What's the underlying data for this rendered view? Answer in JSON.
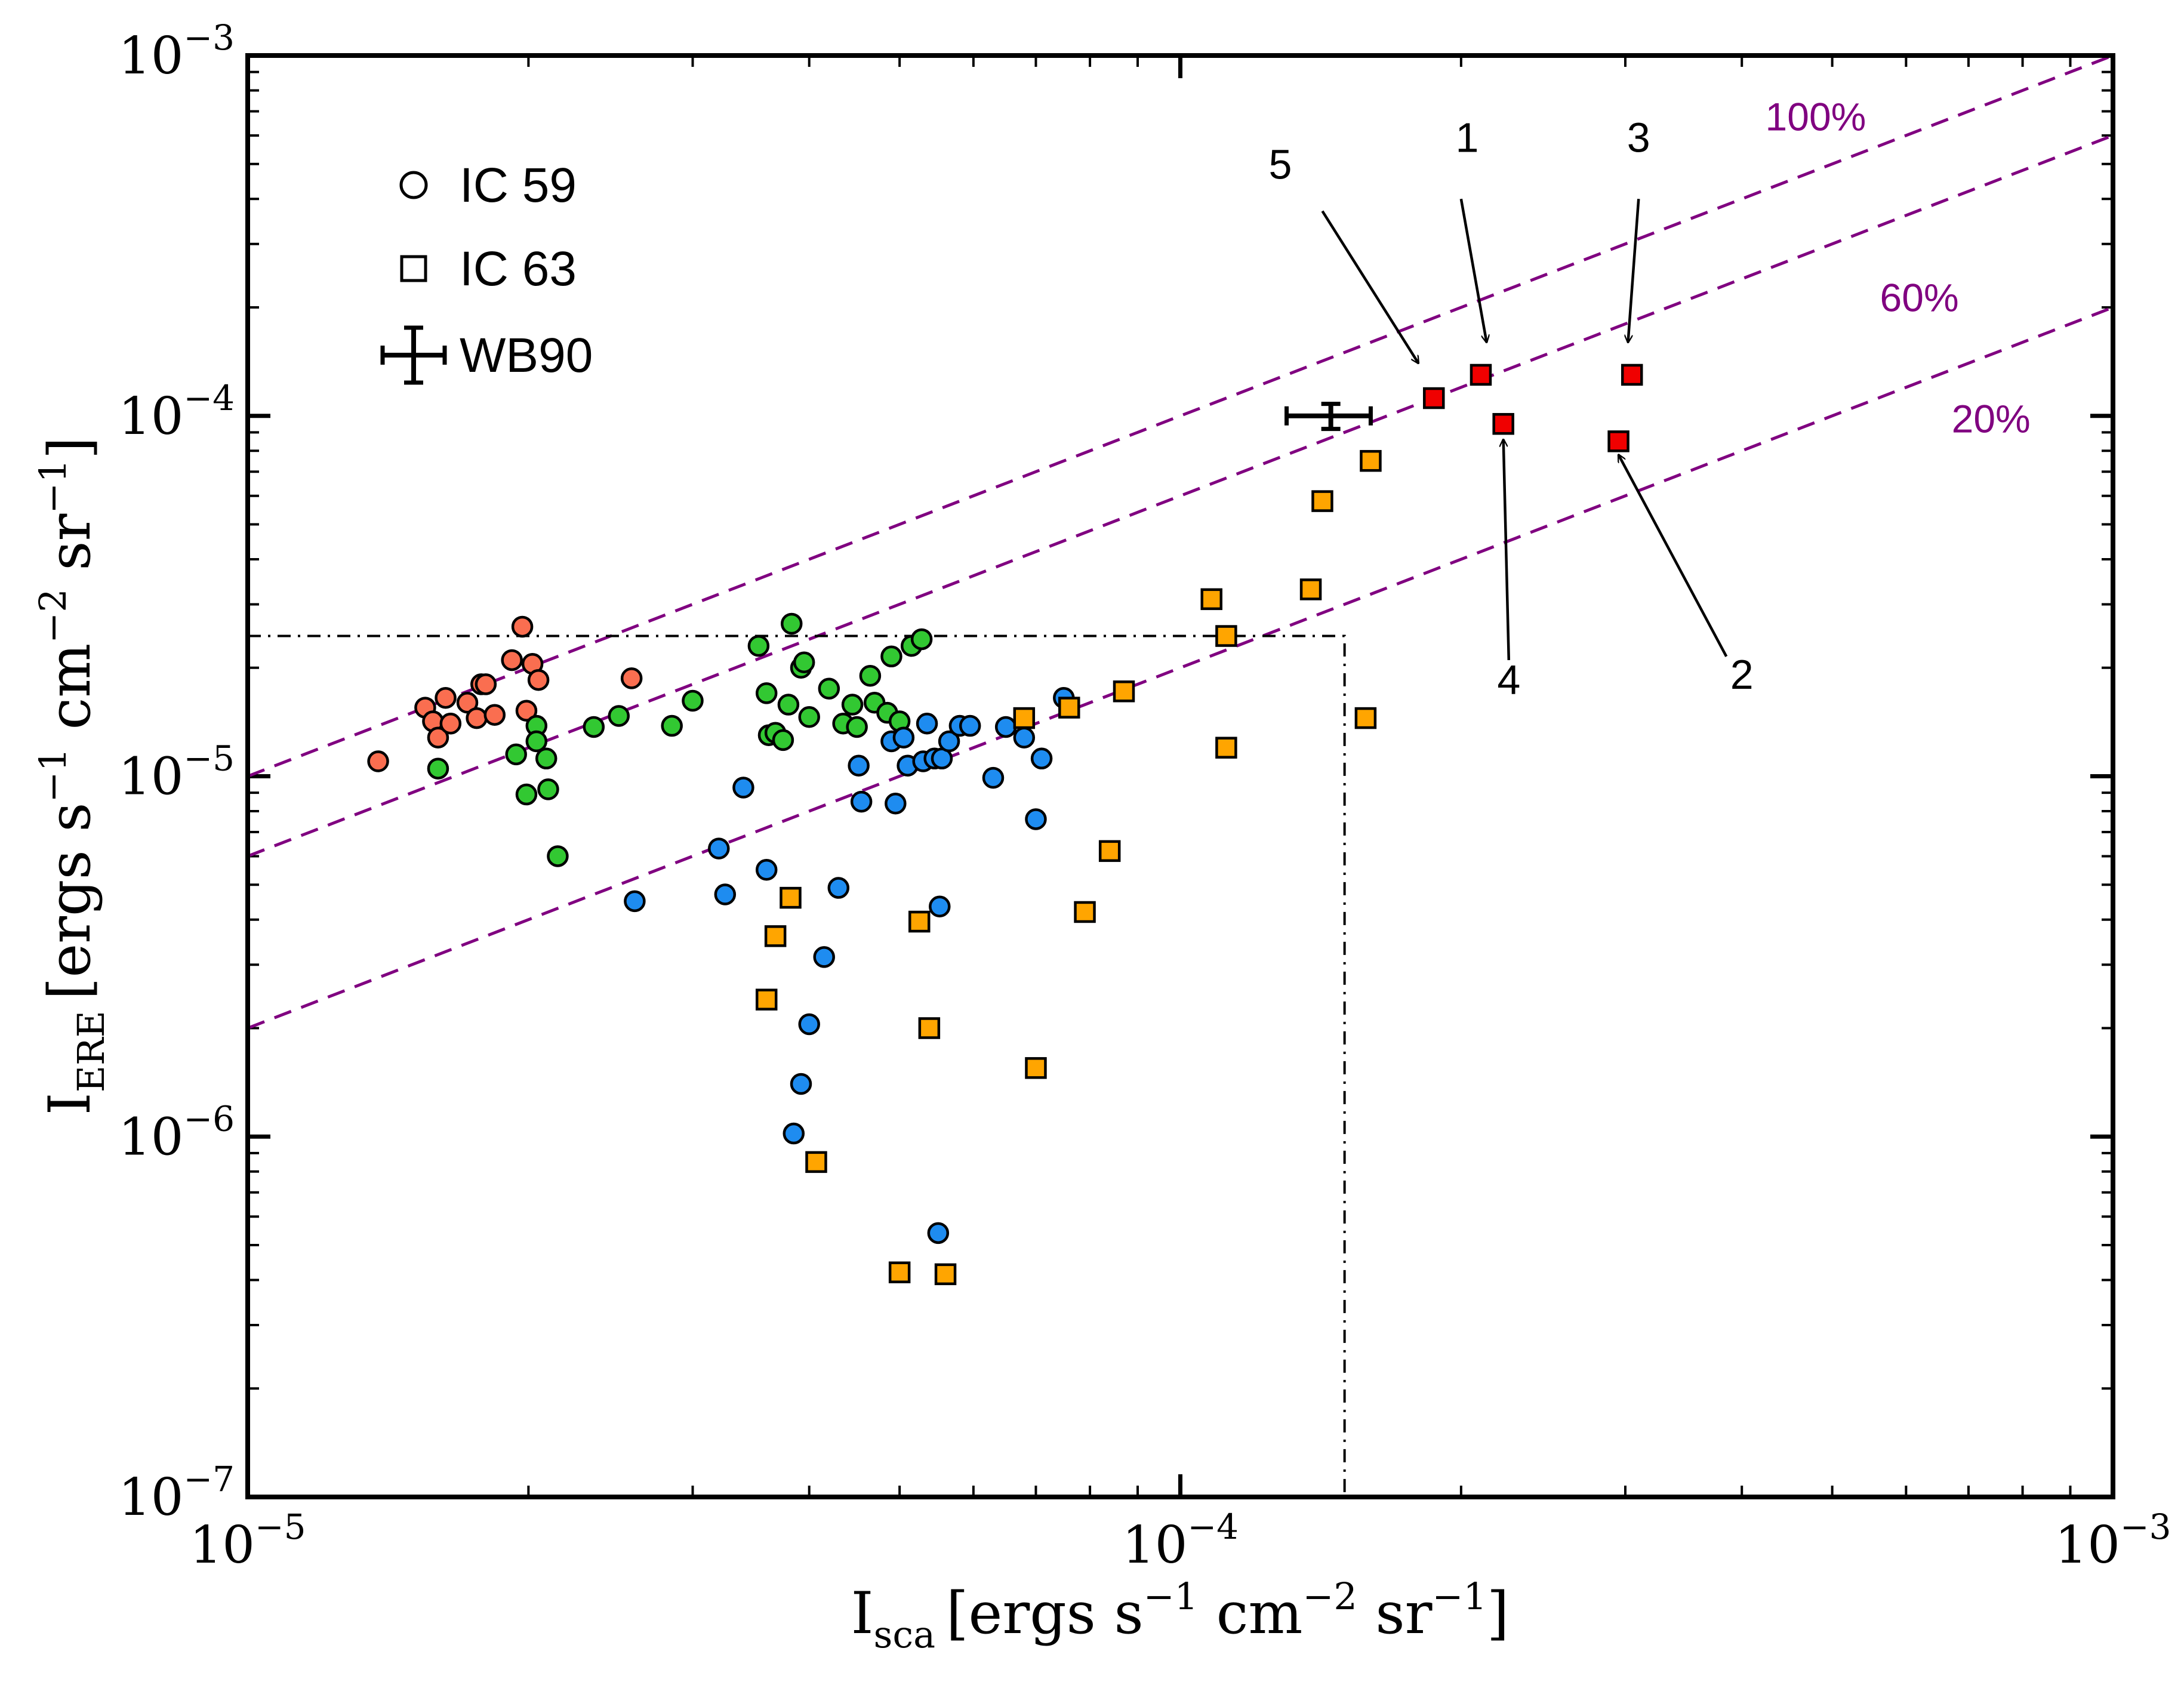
{
  "chart_data": {
    "type": "scatter",
    "x_scale": "log",
    "y_scale": "log",
    "xlim": [
      1e-05,
      0.001
    ],
    "ylim": [
      1e-07,
      0.001
    ],
    "xlabel": {
      "main": "I",
      "sub": "sca",
      "units": "[ergs s",
      "s1": "−1",
      "u2": " cm",
      "s2": "−2",
      "u3": " sr",
      "s3": "−1",
      "close": "]"
    },
    "ylabel": {
      "main": "I",
      "sub": "ERE",
      "units": "[ergs s",
      "s1": "−1",
      "u2": " cm",
      "s2": "−2",
      "u3": " sr",
      "s3": "−1",
      "close": "]"
    },
    "x_ticks": [
      {
        "value": 1e-05,
        "base": "10",
        "exp": "−5"
      },
      {
        "value": 0.0001,
        "base": "10",
        "exp": "−4"
      },
      {
        "value": 0.001,
        "base": "10",
        "exp": "−3"
      }
    ],
    "y_ticks": [
      {
        "value": 1e-07,
        "base": "10",
        "exp": "−7"
      },
      {
        "value": 1e-06,
        "base": "10",
        "exp": "−6"
      },
      {
        "value": 1e-05,
        "base": "10",
        "exp": "−5"
      },
      {
        "value": 0.0001,
        "base": "10",
        "exp": "−4"
      },
      {
        "value": 0.001,
        "base": "10",
        "exp": "−3"
      }
    ],
    "legend": {
      "position": "top-left",
      "entries": [
        {
          "marker": "circle",
          "label": "IC 59"
        },
        {
          "marker": "square",
          "label": "IC 63"
        },
        {
          "marker": "errorbar",
          "label": "WB90"
        }
      ]
    },
    "efficiency_lines": [
      {
        "label": "100%",
        "ratio": 1.0,
        "color": "#800080"
      },
      {
        "label": "60%",
        "ratio": 0.6,
        "color": "#800080"
      },
      {
        "label": "20%",
        "ratio": 0.2,
        "color": "#800080"
      }
    ],
    "threshold_box": {
      "x": 0.00015,
      "y": 2.45e-05
    },
    "wb90": {
      "x": 0.000145,
      "y": 0.0001,
      "xerr": [
        0.00013,
        0.00016
      ],
      "yerr": [
        9.2e-05,
        0.000108
      ]
    },
    "colors": {
      "ic59_red": "#fa6e50",
      "ic59_green": "#32c832",
      "ic59_blue": "#1e8cf0",
      "ic63_orange": "#ffa500",
      "ic63_red": "#f00000",
      "lines": "#800080"
    },
    "series": [
      {
        "marker": "circle",
        "color": "#fa6e50",
        "points": [
          [
            1.38e-05,
            1.1e-05
          ],
          [
            1.55e-05,
            1.55e-05
          ],
          [
            1.58e-05,
            1.42e-05
          ],
          [
            1.6e-05,
            1.28e-05
          ],
          [
            1.63e-05,
            1.65e-05
          ],
          [
            1.65e-05,
            1.4e-05
          ],
          [
            1.72e-05,
            1.6e-05
          ],
          [
            1.76e-05,
            1.45e-05
          ],
          [
            1.78e-05,
            1.8e-05
          ],
          [
            1.8e-05,
            1.8e-05
          ],
          [
            1.84e-05,
            1.48e-05
          ],
          [
            1.92e-05,
            2.1e-05
          ],
          [
            1.97e-05,
            2.6e-05
          ],
          [
            1.99e-05,
            1.52e-05
          ],
          [
            2.02e-05,
            2.05e-05
          ],
          [
            2.05e-05,
            1.85e-05
          ],
          [
            2.58e-05,
            1.87e-05
          ]
        ]
      },
      {
        "marker": "circle",
        "color": "#32c832",
        "points": [
          [
            1.6e-05,
            1.05e-05
          ],
          [
            1.94e-05,
            1.15e-05
          ],
          [
            1.99e-05,
            8.9e-06
          ],
          [
            2.04e-05,
            1.38e-05
          ],
          [
            2.04e-05,
            1.25e-05
          ],
          [
            2.09e-05,
            1.12e-05
          ],
          [
            2.1e-05,
            9.2e-06
          ],
          [
            2.15e-05,
            6e-06
          ],
          [
            2.35e-05,
            1.37e-05
          ],
          [
            2.5e-05,
            1.47e-05
          ],
          [
            2.85e-05,
            1.38e-05
          ],
          [
            3e-05,
            1.62e-05
          ],
          [
            3.53e-05,
            2.3e-05
          ],
          [
            3.6e-05,
            1.7e-05
          ],
          [
            3.62e-05,
            1.3e-05
          ],
          [
            3.68e-05,
            1.32e-05
          ],
          [
            3.75e-05,
            1.26e-05
          ],
          [
            3.8e-05,
            1.58e-05
          ],
          [
            3.83e-05,
            2.65e-05
          ],
          [
            3.92e-05,
            2e-05
          ],
          [
            3.95e-05,
            2.07e-05
          ],
          [
            4e-05,
            1.46e-05
          ],
          [
            4.2e-05,
            1.75e-05
          ],
          [
            4.35e-05,
            1.4e-05
          ],
          [
            4.45e-05,
            1.58e-05
          ],
          [
            4.5e-05,
            1.37e-05
          ],
          [
            4.65e-05,
            1.9e-05
          ],
          [
            4.7e-05,
            1.6e-05
          ],
          [
            4.85e-05,
            1.5e-05
          ],
          [
            4.9e-05,
            2.15e-05
          ],
          [
            5e-05,
            1.42e-05
          ],
          [
            5.15e-05,
            2.3e-05
          ],
          [
            5.28e-05,
            2.4e-05
          ]
        ]
      },
      {
        "marker": "circle",
        "color": "#1e8cf0",
        "points": [
          [
            2.6e-05,
            4.5e-06
          ],
          [
            3.2e-05,
            6.3e-06
          ],
          [
            3.25e-05,
            4.7e-06
          ],
          [
            3.4e-05,
            9.3e-06
          ],
          [
            3.6e-05,
            5.5e-06
          ],
          [
            3.85e-05,
            1.02e-06
          ],
          [
            3.92e-05,
            1.4e-06
          ],
          [
            4e-05,
            2.05e-06
          ],
          [
            4.15e-05,
            3.15e-06
          ],
          [
            4.3e-05,
            4.9e-06
          ],
          [
            4.52e-05,
            1.07e-05
          ],
          [
            4.55e-05,
            8.5e-06
          ],
          [
            4.9e-05,
            1.25e-05
          ],
          [
            4.95e-05,
            8.4e-06
          ],
          [
            5.05e-05,
            1.28e-05
          ],
          [
            5.1e-05,
            1.07e-05
          ],
          [
            5.3e-05,
            1.1e-05
          ],
          [
            5.35e-05,
            1.4e-05
          ],
          [
            5.45e-05,
            1.12e-05
          ],
          [
            5.5e-05,
            5.4e-07
          ],
          [
            5.52e-05,
            4.35e-06
          ],
          [
            5.55e-05,
            1.12e-05
          ],
          [
            5.65e-05,
            1.25e-05
          ],
          [
            5.8e-05,
            1.38e-05
          ],
          [
            5.95e-05,
            1.38e-05
          ],
          [
            6.3e-05,
            9.9e-06
          ],
          [
            6.5e-05,
            1.37e-05
          ],
          [
            6.8e-05,
            1.28e-05
          ],
          [
            7e-05,
            7.6e-06
          ],
          [
            7.1e-05,
            1.12e-05
          ],
          [
            7.5e-05,
            1.65e-05
          ]
        ]
      },
      {
        "marker": "square",
        "color": "#ffa500",
        "points": [
          [
            3.6e-05,
            2.4e-06
          ],
          [
            3.68e-05,
            3.6e-06
          ],
          [
            3.82e-05,
            4.6e-06
          ],
          [
            4.07e-05,
            8.5e-07
          ],
          [
            5e-05,
            4.2e-07
          ],
          [
            5.25e-05,
            3.95e-06
          ],
          [
            5.38e-05,
            2e-06
          ],
          [
            5.6e-05,
            4.15e-07
          ],
          [
            6.8e-05,
            1.45e-05
          ],
          [
            7e-05,
            1.55e-06
          ],
          [
            7.6e-05,
            1.55e-05
          ],
          [
            7.9e-05,
            4.2e-06
          ],
          [
            8.4e-05,
            6.2e-06
          ],
          [
            8.7e-05,
            1.72e-05
          ],
          [
            0.000108,
            3.1e-05
          ],
          [
            0.000112,
            1.2e-05
          ],
          [
            0.000112,
            2.45e-05
          ],
          [
            0.000138,
            3.3e-05
          ],
          [
            0.000142,
            5.8e-05
          ],
          [
            0.000158,
            1.45e-05
          ],
          [
            0.00016,
            7.5e-05
          ]
        ]
      },
      {
        "marker": "square",
        "color": "#f00000",
        "points": [
          [
            0.000187,
            0.000112
          ],
          [
            0.00021,
            0.00013
          ],
          [
            0.000222,
            9.5e-05
          ],
          [
            0.000295,
            8.5e-05
          ],
          [
            0.000305,
            0.00013
          ]
        ]
      }
    ],
    "annotations": [
      {
        "label": "5",
        "text_at": [
          0.000128,
          0.000455
        ],
        "tail": [
          0.000142,
          0.00037
        ],
        "head": [
          0.00018,
          0.00014
        ]
      },
      {
        "label": "1",
        "text_at": [
          0.000203,
          0.00054
        ],
        "tail": [
          0.0002,
          0.0004
        ],
        "head": [
          0.000213,
          0.00016
        ]
      },
      {
        "label": "3",
        "text_at": [
          0.00031,
          0.00054
        ],
        "tail": [
          0.00031,
          0.0004
        ],
        "head": [
          0.000302,
          0.00016
        ]
      },
      {
        "label": "4",
        "text_at": [
          0.000225,
          1.69e-05
        ],
        "tail": [
          0.000225,
          2.1e-05
        ],
        "head": [
          0.000222,
          8.6e-05
        ]
      },
      {
        "label": "2",
        "text_at": [
          0.0004,
          1.75e-05
        ],
        "tail": [
          0.000385,
          2.15e-05
        ],
        "head": [
          0.000295,
          7.8e-05
        ]
      }
    ]
  }
}
